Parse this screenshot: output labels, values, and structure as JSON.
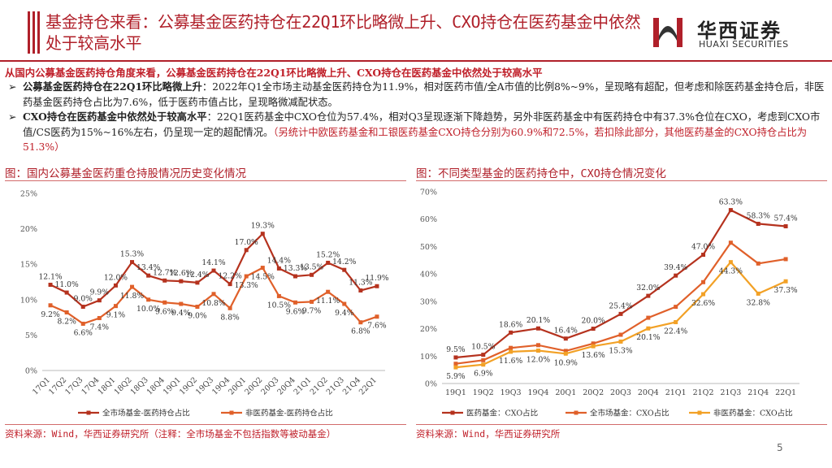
{
  "slide_title": "基金持仓来看：公募基金医药持仓在22Q1环比略微上升、CXO持仓在医药基金中依然处于较高水平",
  "logo": {
    "name_cn": "华西证券",
    "name_en": "HUAXI SECURITIES"
  },
  "summary": "从国内公募基金医药持仓角度来看，公募基金医药持仓在22Q1环比略微上升、CXO持仓在医药基金中依然处于较高水平",
  "bullets": [
    {
      "marker": "➢",
      "lead": "公募基金医药持仓在22Q1环比略微上升",
      "text": "：2022年Q1全市场主动基金医药持仓为11.9%，相对医药市值/全A市值的比例8%~9%，呈现略有超配，但考虑和除医药基金持仓后，非医药基金医药持仓占比为7.6%，低于医药市值占比，呈现略微减配状态。",
      "note": ""
    },
    {
      "marker": "➢",
      "lead": "CXO持仓在医药基金中依然处于较高水平",
      "text": "：22Q1医药基金中CXO仓位为57.4%，相对Q3呈现逐渐下降趋势，另外非医药基金中有医药持仓中有37.3%仓位在CXO，考虑到CXO市值/CS医药为15%~16%左右，仍呈现一定的超配情况。",
      "note": "（另统计中欧医药基金和工银医药基金CXO持仓分别为60.9%和72.5%，若扣除此部分，其他医药基金的CXO持仓占比为51.3%）"
    }
  ],
  "figures": {
    "left_title": "图：国内公募基金医药重仓持股情况历史变化情况",
    "right_title": "图：不同类型基金的医药持仓中，CXO持仓情况变化",
    "left_source": "资料来源：Wind，华西证券研究所（注释：全市场基金不包括指数等被动基金）",
    "right_source": "资料来源：Wind，华西证券研究所"
  },
  "page_number": "5",
  "colors": {
    "brand_red": "#b0202a",
    "dark_red": "#b5321e",
    "orange": "#e0602a",
    "amber": "#f2a126"
  },
  "chart_data": [
    {
      "type": "line",
      "categories": [
        "17Q1",
        "17Q2",
        "17Q3",
        "17Q4",
        "18Q1",
        "18Q2",
        "18Q3",
        "18Q4",
        "19Q1",
        "19Q2",
        "19Q3",
        "19Q4",
        "20Q1",
        "20Q2",
        "20Q3",
        "20Q4",
        "21Q1",
        "21Q2",
        "21Q3",
        "21Q4",
        "22Q1"
      ],
      "ylim": [
        0,
        25
      ],
      "yticks": [
        "0%",
        "5%",
        "10%",
        "15%",
        "20%",
        "25%"
      ],
      "grid": false,
      "legend_position": "bottom",
      "series": [
        {
          "name": "全市场基金-医药持仓占比",
          "color": "#b5321e",
          "values": [
            12.1,
            11.0,
            9.0,
            9.9,
            12.0,
            15.3,
            13.4,
            12.7,
            12.6,
            12.4,
            14.1,
            12.2,
            17.0,
            19.3,
            14.4,
            13.3,
            13.5,
            15.2,
            14.2,
            11.3,
            11.9
          ],
          "labels": [
            "12.1%",
            "11.0%",
            "9.0%",
            "9.9%",
            "12.0%",
            "15.3%",
            "13.4%",
            "12.7%",
            "12.6%",
            "12.4%",
            "14.1%",
            "12.2%",
            "17.0%",
            "19.3%",
            "14.4%",
            "13.3%",
            "13.5%",
            "15.2%",
            "14.2%",
            "11.3%",
            "11.9%"
          ]
        },
        {
          "name": "非医药基金-医药持仓占比",
          "color": "#e0602a",
          "values": [
            9.2,
            8.2,
            6.6,
            7.4,
            9.1,
            11.8,
            10.0,
            9.6,
            9.4,
            9.0,
            10.8,
            8.8,
            13.3,
            14.5,
            10.5,
            9.6,
            9.7,
            11.1,
            9.4,
            6.8,
            7.6
          ],
          "labels": [
            "9.2%",
            "8.2%",
            "6.6%",
            "7.4%",
            "9.1%",
            "11.8%",
            "10.0%",
            "9.6%",
            "9.4%",
            "9.0%",
            "10.8%",
            "8.8%",
            "13.3%",
            "14.5%",
            "10.5%",
            "9.6%",
            "9.7%",
            "11.1%",
            "9.4%",
            "6.8%",
            "7.6%"
          ]
        }
      ]
    },
    {
      "type": "line",
      "categories": [
        "19Q1",
        "19Q2",
        "19Q3",
        "19Q4",
        "20Q1",
        "20Q2",
        "20Q3",
        "20Q4",
        "21Q1",
        "21Q2",
        "21Q3",
        "21Q4",
        "22Q1"
      ],
      "ylim": [
        0,
        70
      ],
      "yticks": [
        "0%",
        "10%",
        "20%",
        "30%",
        "40%",
        "50%",
        "60%",
        "70%"
      ],
      "grid": false,
      "legend_position": "bottom",
      "series": [
        {
          "name": "医药基金：CXO占比",
          "color": "#b5321e",
          "values": [
            9.5,
            10.5,
            18.6,
            20.1,
            16.4,
            20.0,
            25.4,
            32.0,
            39.4,
            47.0,
            63.3,
            58.3,
            57.4
          ],
          "labels": [
            "9.5%",
            "10.5%",
            "18.6%",
            "20.1%",
            "16.4%",
            "20.0%",
            "25.4%",
            "32.0%",
            "39.4%",
            "47.0%",
            "63.3%",
            "58.3%",
            "57.4%"
          ]
        },
        {
          "name": "全市场基金：CXO占比",
          "color": "#e0602a",
          "values": [
            7.2,
            8.5,
            13.0,
            14.0,
            11.9,
            14.6,
            17.8,
            24.0,
            28.0,
            37.0,
            51.4,
            43.8,
            45.4
          ],
          "labels": []
        },
        {
          "name": "非医药基金：CXO占比",
          "color": "#f2a126",
          "values": [
            5.9,
            6.9,
            11.6,
            12.0,
            10.9,
            13.6,
            15.3,
            20.1,
            22.4,
            32.6,
            44.3,
            32.8,
            37.3
          ],
          "labels": [
            "5.9%",
            "6.9%",
            "11.6%",
            "12.0%",
            "10.9%",
            "13.6%",
            "15.3%",
            "20.1%",
            "22.4%",
            "32.6%",
            "44.3%",
            "32.8%",
            "37.3%"
          ]
        }
      ]
    }
  ]
}
